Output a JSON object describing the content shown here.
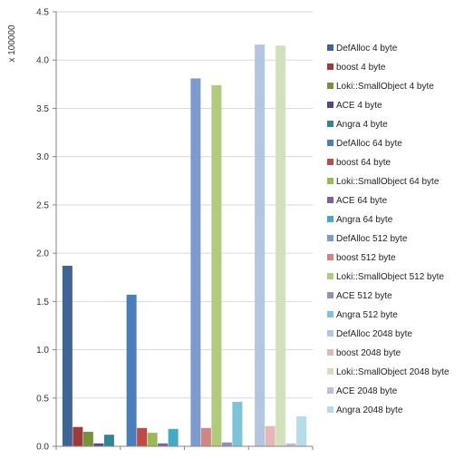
{
  "chart_data": {
    "type": "bar",
    "y_unit_label": "x 100000",
    "ylim": [
      0,
      4.5
    ],
    "y_ticks": [
      "0.0",
      "0.5",
      "1.0",
      "1.5",
      "2.0",
      "2.5",
      "3.0",
      "3.5",
      "4.0",
      "4.5"
    ],
    "grid": true,
    "legend_position": "right",
    "groups": 4,
    "series": [
      {
        "name": "DefAlloc 4 byte",
        "color": "#3e6595",
        "values": [
          1.87,
          null,
          null,
          null
        ]
      },
      {
        "name": "boost 4 byte",
        "color": "#9b3b3a",
        "values": [
          0.2,
          null,
          null,
          null
        ]
      },
      {
        "name": "Loki::SmallObject 4 byte",
        "color": "#76923c",
        "values": [
          0.15,
          null,
          null,
          null
        ]
      },
      {
        "name": "ACE 4 byte",
        "color": "#5b4680",
        "values": [
          0.03,
          null,
          null,
          null
        ]
      },
      {
        "name": "Angra 4 byte",
        "color": "#31849b",
        "values": [
          0.12,
          null,
          null,
          null
        ]
      },
      {
        "name": "DefAlloc 64 byte",
        "color": "#4a7ebb",
        "values": [
          null,
          1.57,
          null,
          null
        ]
      },
      {
        "name": "boost 64 byte",
        "color": "#be4b48",
        "values": [
          null,
          0.19,
          null,
          null
        ]
      },
      {
        "name": "Loki::SmallObject 64 byte",
        "color": "#98b954",
        "values": [
          null,
          0.14,
          null,
          null
        ]
      },
      {
        "name": "ACE 64 byte",
        "color": "#7d60a0",
        "values": [
          null,
          0.03,
          null,
          null
        ]
      },
      {
        "name": "Angra 64 byte",
        "color": "#46aac5",
        "values": [
          null,
          0.18,
          null,
          null
        ]
      },
      {
        "name": "DefAlloc 512 byte",
        "color": "#7d9bcc",
        "values": [
          null,
          null,
          3.81,
          null
        ]
      },
      {
        "name": "boost 512 byte",
        "color": "#d18583",
        "values": [
          null,
          null,
          0.19,
          null
        ]
      },
      {
        "name": "Loki::SmallObject 512 byte",
        "color": "#b0cb7e",
        "values": [
          null,
          null,
          3.74,
          null
        ]
      },
      {
        "name": "ACE 512 byte",
        "color": "#9c8ab8",
        "values": [
          null,
          null,
          0.04,
          null
        ]
      },
      {
        "name": "Angra 512 byte",
        "color": "#7fc3d7",
        "values": [
          null,
          null,
          0.46,
          null
        ]
      },
      {
        "name": "DefAlloc 2048 byte",
        "color": "#b4c5e2",
        "values": [
          null,
          null,
          null,
          4.16
        ]
      },
      {
        "name": "boost 2048 byte",
        "color": "#e3b9b8",
        "values": [
          null,
          null,
          null,
          0.21
        ]
      },
      {
        "name": "Loki::SmallObject 2048 byte",
        "color": "#d2e0bb",
        "values": [
          null,
          null,
          null,
          4.15
        ]
      },
      {
        "name": "ACE 2048 byte",
        "color": "#c5bdd6",
        "values": [
          null,
          null,
          null,
          0.03
        ]
      },
      {
        "name": "Angra 2048 byte",
        "color": "#b5dce8",
        "values": [
          null,
          null,
          null,
          0.31
        ]
      }
    ]
  }
}
